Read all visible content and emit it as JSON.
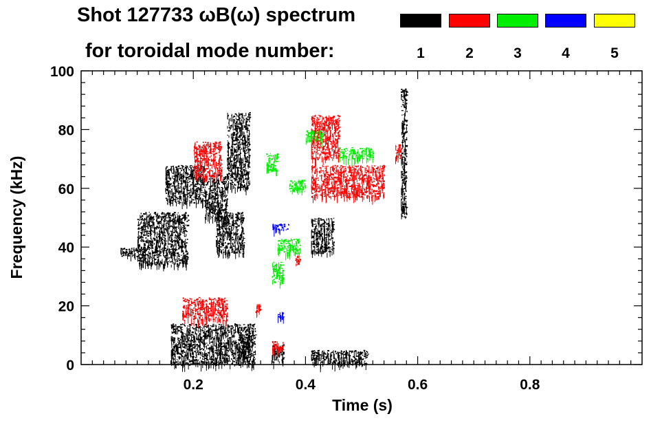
{
  "title": {
    "line1": "Shot 127733 ωB(ω) spectrum",
    "line2": "for toroidal mode number:"
  },
  "legend": [
    {
      "label": "1",
      "color": "#000000"
    },
    {
      "label": "2",
      "color": "#ff0000"
    },
    {
      "label": "3",
      "color": "#00ee00"
    },
    {
      "label": "4",
      "color": "#0000ff"
    },
    {
      "label": "5",
      "color": "#ffff00"
    }
  ],
  "chart_data": {
    "type": "scatter",
    "title": "Shot 127733 ωB(ω) spectrum for toroidal mode number:",
    "xlabel": "Time (s)",
    "ylabel": "Frequency (kHz)",
    "xlim": [
      0.0,
      1.0
    ],
    "ylim": [
      0,
      100
    ],
    "xticks": [
      0.2,
      0.4,
      0.6,
      0.8
    ],
    "xtick_labels": [
      "0.2",
      "0.4",
      "0.6",
      "0.8"
    ],
    "yticks": [
      0,
      20,
      40,
      60,
      80,
      100
    ],
    "ytick_labels": [
      "0",
      "20",
      "40",
      "60",
      "80",
      "100"
    ],
    "grid": false,
    "series": [
      {
        "name": "n=1",
        "color": "#000000",
        "regions": [
          {
            "t": [
              0.07,
              0.11
            ],
            "f": [
              37,
              40
            ]
          },
          {
            "t": [
              0.1,
              0.19
            ],
            "f": [
              34,
              52
            ]
          },
          {
            "t": [
              0.15,
              0.22
            ],
            "f": [
              55,
              68
            ]
          },
          {
            "t": [
              0.22,
              0.26
            ],
            "f": [
              50,
              65
            ]
          },
          {
            "t": [
              0.16,
              0.31
            ],
            "f": [
              0,
              14
            ]
          },
          {
            "t": [
              0.28,
              0.3
            ],
            "f": [
              2,
              10
            ]
          },
          {
            "t": [
              0.24,
              0.29
            ],
            "f": [
              38,
              52
            ]
          },
          {
            "t": [
              0.26,
              0.3
            ],
            "f": [
              60,
              86
            ]
          },
          {
            "t": [
              0.41,
              0.45
            ],
            "f": [
              38,
              50
            ]
          },
          {
            "t": [
              0.41,
              0.51
            ],
            "f": [
              0,
              5
            ]
          },
          {
            "t": [
              0.34,
              0.36
            ],
            "f": [
              1,
              7
            ]
          },
          {
            "t": [
              0.57,
              0.58
            ],
            "f": [
              50,
              94
            ]
          }
        ]
      },
      {
        "name": "n=2",
        "color": "#ff0000",
        "regions": [
          {
            "t": [
              0.18,
              0.26
            ],
            "f": [
              15,
              23
            ]
          },
          {
            "t": [
              0.2,
              0.25
            ],
            "f": [
              64,
              76
            ]
          },
          {
            "t": [
              0.41,
              0.54
            ],
            "f": [
              57,
              68
            ]
          },
          {
            "t": [
              0.41,
              0.46
            ],
            "f": [
              70,
              85
            ]
          },
          {
            "t": [
              0.31,
              0.32
            ],
            "f": [
              18,
              21
            ]
          },
          {
            "t": [
              0.34,
              0.36
            ],
            "f": [
              5,
              8
            ]
          },
          {
            "t": [
              0.38,
              0.39
            ],
            "f": [
              34,
              37
            ]
          },
          {
            "t": [
              0.56,
              0.57
            ],
            "f": [
              70,
              75
            ]
          }
        ]
      },
      {
        "name": "n=3",
        "color": "#00ee00",
        "regions": [
          {
            "t": [
              0.33,
              0.35
            ],
            "f": [
              66,
              72
            ]
          },
          {
            "t": [
              0.37,
              0.4
            ],
            "f": [
              59,
              63
            ]
          },
          {
            "t": [
              0.35,
              0.39
            ],
            "f": [
              38,
              43
            ]
          },
          {
            "t": [
              0.4,
              0.43
            ],
            "f": [
              76,
              80
            ]
          },
          {
            "t": [
              0.46,
              0.52
            ],
            "f": [
              70,
              74
            ]
          },
          {
            "t": [
              0.34,
              0.36
            ],
            "f": [
              28,
              35
            ]
          }
        ]
      },
      {
        "name": "n=4",
        "color": "#0000ff",
        "regions": [
          {
            "t": [
              0.34,
              0.37
            ],
            "f": [
              46,
              48
            ]
          },
          {
            "t": [
              0.35,
              0.36
            ],
            "f": [
              16,
              18
            ]
          }
        ]
      },
      {
        "name": "n=5",
        "color": "#ffff00",
        "regions": []
      }
    ]
  }
}
